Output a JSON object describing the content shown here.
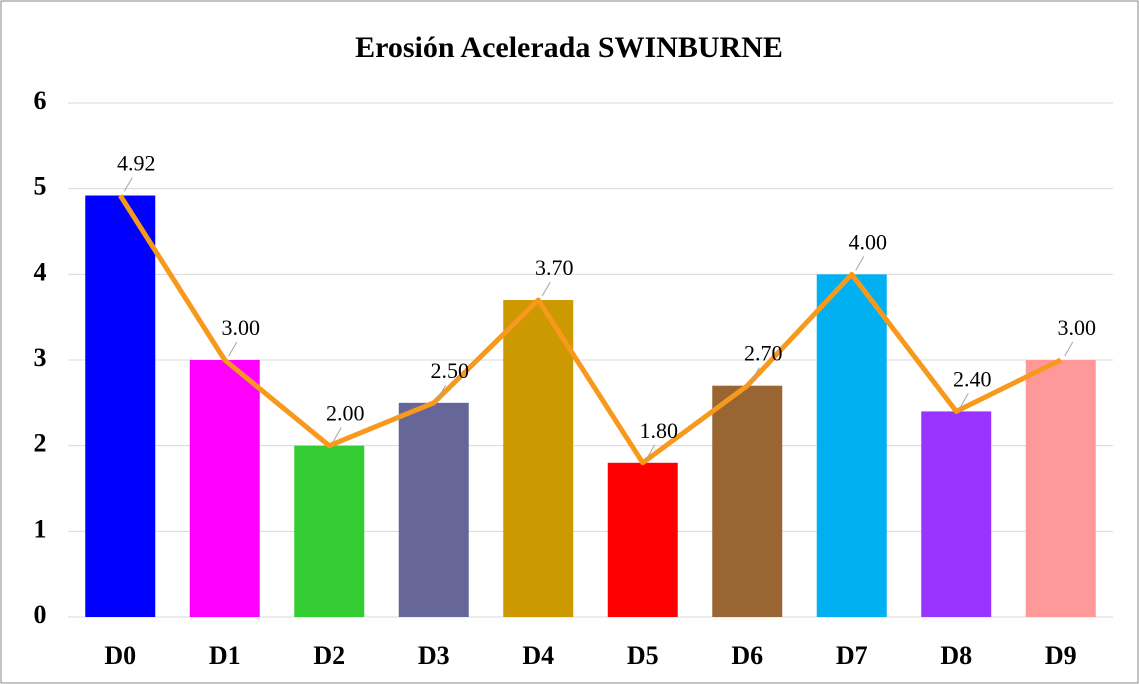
{
  "chart_data": {
    "type": "bar_line",
    "title": "Erosión Acelerada SWINBURNE",
    "categories": [
      "D0",
      "D1",
      "D2",
      "D3",
      "D4",
      "D5",
      "D6",
      "D7",
      "D8",
      "D9"
    ],
    "values": [
      4.92,
      3,
      2,
      2.5,
      3.7,
      1.8,
      2.7,
      4,
      2.4,
      3
    ],
    "value_labels": [
      "4.92",
      "3.00",
      "2.00",
      "2.50",
      "3.70",
      "1.80",
      "2.70",
      "4.00",
      "2.40",
      "3.00"
    ],
    "colors": [
      "#0000ff",
      "#ff00ff",
      "#33cc33",
      "#666699",
      "#cc9900",
      "#ff0000",
      "#996633",
      "#00b0f0",
      "#9933ff",
      "#ff9999"
    ],
    "line_color": "#f7991c",
    "ylim": [
      0,
      6
    ],
    "yticks": [
      0,
      1,
      2,
      3,
      4,
      5,
      6
    ],
    "grid": true
  }
}
